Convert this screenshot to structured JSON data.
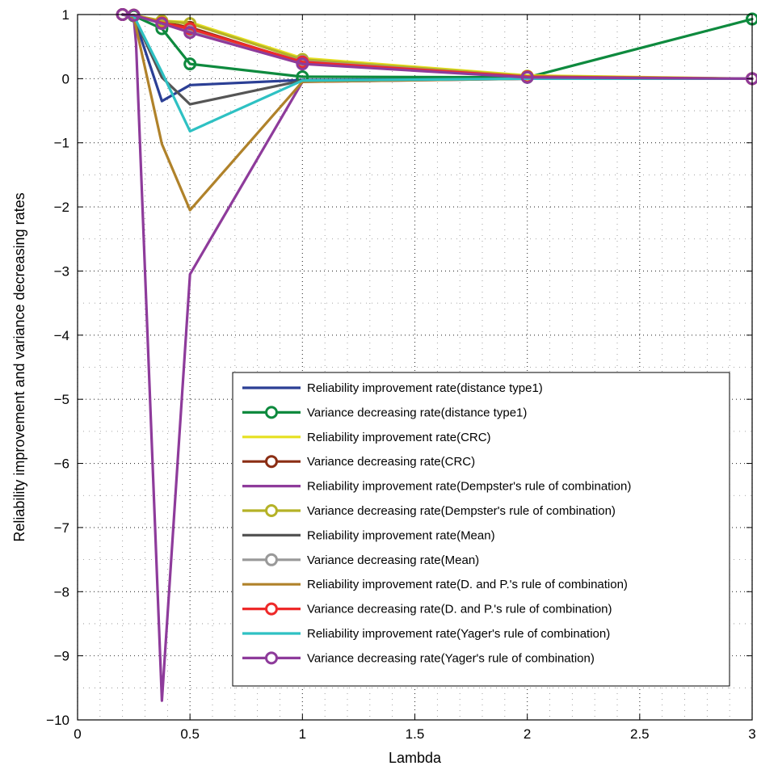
{
  "chart_data": {
    "type": "line",
    "xlabel": "Lambda",
    "ylabel": "Reliability improvement and variance decreasing rates",
    "xlim": [
      0,
      3
    ],
    "ylim": [
      -10,
      1
    ],
    "x_ticks": [
      0,
      0.5,
      1,
      1.5,
      2,
      2.5,
      3
    ],
    "x_tick_labels": [
      "0",
      "0.5",
      "1",
      "1.5",
      "2",
      "2.5",
      "3"
    ],
    "y_ticks": [
      -10,
      -9,
      -8,
      -7,
      -6,
      -5,
      -4,
      -3,
      -2,
      -1,
      0,
      1
    ],
    "y_tick_labels": [
      "−10",
      "−9",
      "−8",
      "−7",
      "−6",
      "−5",
      "−4",
      "−3",
      "−2",
      "−1",
      "0",
      "1"
    ],
    "grid": "dotted",
    "minor_grid": true,
    "legend_placement": "bottom-right",
    "series": [
      {
        "name": "Reliability improvement rate(distance type1)",
        "color": "#2b3f95",
        "marker": "none",
        "x": [
          0.2,
          0.25,
          0.375,
          0.5,
          1,
          2,
          3
        ],
        "y": [
          1,
          0.97,
          -0.35,
          -0.1,
          -0.02,
          0.0,
          0.0
        ]
      },
      {
        "name": "Variance decreasing rate(distance type1)",
        "color": "#0e8a3e",
        "marker": "circle",
        "x": [
          0.2,
          0.25,
          0.375,
          0.5,
          1,
          2,
          3
        ],
        "y": [
          1,
          0.98,
          0.78,
          0.23,
          0.03,
          0.02,
          0.93
        ]
      },
      {
        "name": "Reliability improvement rate(CRC)",
        "color": "#e6e020",
        "marker": "none",
        "x": [
          0.2,
          0.25,
          0.375,
          0.5,
          1,
          2,
          3
        ],
        "y": [
          1,
          0.99,
          0.9,
          0.88,
          0.32,
          0.05,
          0.0
        ]
      },
      {
        "name": "Variance decreasing rate(CRC)",
        "color": "#8b2e14",
        "marker": "circle",
        "x": [
          0.2,
          0.25,
          0.375,
          0.5,
          1,
          2,
          3
        ],
        "y": [
          1,
          0.99,
          0.88,
          0.8,
          0.25,
          0.03,
          0.0
        ]
      },
      {
        "name": "Reliability improvement rate(Dempster's rule of combination)",
        "color": "#8e3b9b",
        "marker": "none",
        "x": [
          0.2,
          0.25,
          0.26,
          0.375,
          0.5,
          1,
          2,
          3
        ],
        "y": [
          1,
          0.95,
          0.55,
          -9.7,
          -3.05,
          -0.05,
          0.0,
          0.0
        ]
      },
      {
        "name": "Variance decreasing rate(Dempster's rule of combination)",
        "color": "#b5b227",
        "marker": "circle",
        "x": [
          0.2,
          0.25,
          0.375,
          0.5,
          1,
          2,
          3
        ],
        "y": [
          1,
          0.99,
          0.9,
          0.86,
          0.3,
          0.04,
          0.0
        ]
      },
      {
        "name": "Reliability improvement rate(Mean)",
        "color": "#555555",
        "marker": "none",
        "x": [
          0.2,
          0.25,
          0.375,
          0.5,
          1,
          2,
          3
        ],
        "y": [
          1,
          0.97,
          0.02,
          -0.4,
          -0.03,
          0.0,
          0.0
        ]
      },
      {
        "name": "Variance decreasing rate(Mean)",
        "color": "#999999",
        "marker": "circle",
        "x": [
          0.2,
          0.25,
          0.375,
          0.5,
          1,
          2,
          3
        ],
        "y": [
          1,
          0.99,
          0.86,
          0.76,
          0.27,
          0.03,
          0.0
        ]
      },
      {
        "name": "Reliability improvement rate(D. and P.'s rule of combination)",
        "color": "#b0822a",
        "marker": "none",
        "x": [
          0.2,
          0.25,
          0.375,
          0.5,
          1,
          2,
          3
        ],
        "y": [
          1,
          0.96,
          -1.02,
          -2.05,
          -0.05,
          0.0,
          0.0
        ]
      },
      {
        "name": "Variance decreasing rate(D. and P.'s rule of combination)",
        "color": "#ee2a2a",
        "marker": "circle",
        "x": [
          0.2,
          0.25,
          0.375,
          0.5,
          1,
          2,
          3
        ],
        "y": [
          1,
          0.99,
          0.87,
          0.78,
          0.26,
          0.03,
          0.0
        ]
      },
      {
        "name": "Reliability improvement rate(Yager's rule of combination)",
        "color": "#2ec1c3",
        "marker": "none",
        "x": [
          0.2,
          0.25,
          0.375,
          0.5,
          1,
          2,
          3
        ],
        "y": [
          1,
          0.98,
          0.1,
          -0.82,
          -0.03,
          0.0,
          0.0
        ]
      },
      {
        "name": "Variance decreasing rate(Yager's rule of combination)",
        "color": "#8e3b9b",
        "marker": "circle",
        "x": [
          0.2,
          0.25,
          0.375,
          0.5,
          1,
          2,
          3
        ],
        "y": [
          1,
          0.99,
          0.86,
          0.72,
          0.23,
          0.02,
          0.0
        ]
      }
    ]
  }
}
